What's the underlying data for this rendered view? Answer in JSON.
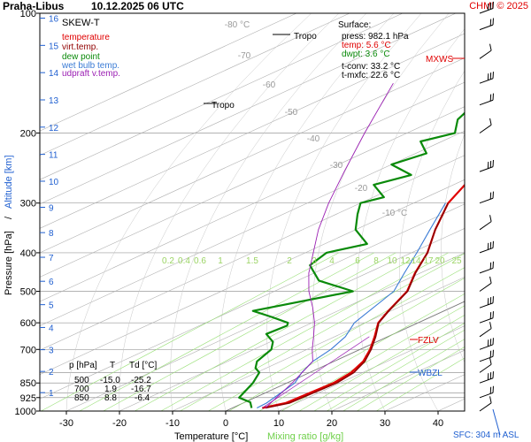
{
  "header": {
    "station": "Praha-Libus",
    "datetime": "10.12.2025 06 UTC",
    "credit": "CHMI © 2025"
  },
  "legend": {
    "title": "SKEW-T",
    "items": [
      {
        "label": "temperature",
        "color": "#e00000"
      },
      {
        "label": "virt.temp.",
        "color": "#900000"
      },
      {
        "label": "dew point",
        "color": "#0a8a0a"
      },
      {
        "label": "wet bulb temp.",
        "color": "#3a7bd5"
      },
      {
        "label": "udpraft v.temp.",
        "color": "#9b1fb3"
      }
    ]
  },
  "surface_box": {
    "title": "Surface:",
    "press": "press: 982.1 hPa",
    "temp": "temp: 5.6 °C",
    "dwpt": "dwpt: 3.6 °C",
    "tconv": "t-conv: 33.2 °C",
    "tmxfc": "t-mxfc: 22.6 °C"
  },
  "level_table": {
    "header": [
      "p [hPa]",
      "T",
      "Td [°C]"
    ],
    "rows": [
      [
        "500",
        "-15.0",
        "-25.2"
      ],
      [
        "700",
        "1.9",
        "-16.7"
      ],
      [
        "850",
        "8.8",
        "-6.4"
      ]
    ]
  },
  "annotations": {
    "tropo_upper": "Tropo",
    "tropo_lower": "Tropo",
    "mxws": "MXWS",
    "fzlv": "FZLV",
    "wbzl": "WBZL",
    "sfc": "SFC: 304 m ASL"
  },
  "axes": {
    "xlabel": "Temperature [°C]",
    "xlabel2": "Mixing ratio [g/kg]",
    "ylabel": "Pressure [hPa]",
    "ylabel_sep": "/",
    "ylabel2": "Altitude [km]",
    "x_ticks": [
      "-30",
      "-20",
      "-10",
      "0",
      "10",
      "20",
      "30",
      "40"
    ],
    "p_ticks": [
      "100",
      "200",
      "300",
      "400",
      "500",
      "600",
      "700",
      "850",
      "925",
      "1000"
    ],
    "alt_ticks": [
      "16",
      "15",
      "14",
      "13",
      "12",
      "11",
      "10",
      "9",
      "8",
      "7",
      "6",
      "5",
      "4",
      "3",
      "2",
      "1"
    ],
    "isotherm_labels": [
      "-80 °C",
      "-70",
      "-60",
      "-50",
      "-40",
      "-30",
      "-20",
      "-10 °C"
    ],
    "mixing_labels": [
      "0.2",
      "0.4",
      "0.6",
      "1",
      "1.5",
      "2",
      "3",
      "4",
      "6",
      "8",
      "10",
      "12",
      "14",
      "17",
      "20",
      "25"
    ]
  },
  "chart_data": {
    "type": "line",
    "title": "Praha-Libus 10.12.2025 06 UTC",
    "xlabel": "Temperature [°C]",
    "ylabel": "Pressure [hPa]",
    "xlim": [
      -35,
      45
    ],
    "ylim": [
      1000,
      100
    ],
    "y_scale": "log",
    "skew": "skew-T log-p",
    "grid": true,
    "series": [
      {
        "name": "temperature",
        "color": "#e00000",
        "points": [
          [
            5.6,
            982
          ],
          [
            8.0,
            955
          ],
          [
            8.8,
            850
          ],
          [
            7.8,
            800
          ],
          [
            5.5,
            750
          ],
          [
            1.9,
            700
          ],
          [
            -2.5,
            650
          ],
          [
            -7.5,
            600
          ],
          [
            -10.5,
            560
          ],
          [
            -15.0,
            500
          ],
          [
            -21.0,
            450
          ],
          [
            -27.0,
            400
          ],
          [
            -35.0,
            350
          ],
          [
            -43.5,
            300
          ],
          [
            -51.0,
            250
          ],
          [
            -56.0,
            220
          ],
          [
            -58.5,
            200
          ],
          [
            -59.5,
            185
          ],
          [
            -56.0,
            170
          ],
          [
            -57.0,
            160
          ],
          [
            -55.5,
            150
          ],
          [
            -54.5,
            140
          ],
          [
            -52.0,
            130
          ],
          [
            -51.0,
            120
          ],
          [
            -50.0,
            112
          ],
          [
            -52.0,
            106
          ],
          [
            -51.0,
            100
          ]
        ]
      },
      {
        "name": "virt.temp.",
        "color": "#900000",
        "points": [
          [
            6.2,
            982
          ],
          [
            8.7,
            955
          ],
          [
            9.4,
            850
          ],
          [
            8.3,
            800
          ],
          [
            5.8,
            750
          ],
          [
            2.1,
            700
          ],
          [
            -2.3,
            650
          ],
          [
            -7.4,
            600
          ],
          [
            -10.4,
            560
          ],
          [
            -14.9,
            500
          ],
          [
            -20.9,
            450
          ],
          [
            -27.0,
            400
          ],
          [
            -35.0,
            350
          ],
          [
            -43.5,
            300
          ]
        ]
      },
      {
        "name": "dew point",
        "color": "#0a8a0a",
        "points": [
          [
            3.6,
            982
          ],
          [
            1.0,
            950
          ],
          [
            -3.0,
            925
          ],
          [
            -6.4,
            850
          ],
          [
            -9.5,
            800
          ],
          [
            -12.0,
            780
          ],
          [
            -14.5,
            750
          ],
          [
            -16.7,
            700
          ],
          [
            -19.5,
            670
          ],
          [
            -24.0,
            640
          ],
          [
            -23.5,
            610
          ],
          [
            -24.5,
            600
          ],
          [
            -30.0,
            580
          ],
          [
            -36.0,
            560
          ],
          [
            -25.2,
            500
          ],
          [
            -36.0,
            470
          ],
          [
            -44.0,
            430
          ],
          [
            -46.0,
            400
          ],
          [
            -42.0,
            380
          ],
          [
            -50.0,
            350
          ],
          [
            -56.0,
            320
          ],
          [
            -60.0,
            300
          ],
          [
            -58.0,
            290
          ],
          [
            -65.0,
            270
          ],
          [
            -62.0,
            255
          ],
          [
            -70.0,
            240
          ],
          [
            -68.0,
            225
          ],
          [
            -74.0,
            210
          ],
          [
            -71.0,
            200
          ],
          [
            -76.0,
            185
          ],
          [
            -78.0,
            175
          ],
          [
            -74.0,
            165
          ],
          [
            -83.0,
            155
          ],
          [
            -83.0,
            145
          ],
          [
            -80.0,
            135
          ],
          [
            -83.0,
            125
          ],
          [
            -82.0,
            112
          ],
          [
            -84.0,
            100
          ]
        ]
      },
      {
        "name": "wet bulb temp.",
        "color": "#3a7bd5",
        "points": [
          [
            4.6,
            982
          ],
          [
            4.4,
            955
          ],
          [
            1.5,
            850
          ],
          [
            -1.5,
            800
          ],
          [
            -4.0,
            750
          ],
          [
            -5.5,
            700
          ],
          [
            -8.0,
            650
          ],
          [
            -12.0,
            600
          ],
          [
            -17.5,
            500
          ],
          [
            -23.0,
            450
          ],
          [
            -29.0,
            400
          ],
          [
            -36.0,
            350
          ],
          [
            -44.0,
            300
          ]
        ]
      },
      {
        "name": "udpraft v.temp.",
        "color": "#9b1fb3",
        "points": [
          [
            6.2,
            982
          ],
          [
            5.0,
            950
          ],
          [
            1.0,
            850
          ],
          [
            -4.0,
            750
          ],
          [
            -9.0,
            700
          ],
          [
            -14.0,
            650
          ],
          [
            -19.5,
            600
          ],
          [
            -26.0,
            550
          ],
          [
            -33.5,
            500
          ],
          [
            -41.0,
            450
          ],
          [
            -48.5,
            400
          ],
          [
            -57.0,
            350
          ],
          [
            -66.0,
            300
          ],
          [
            -76.0,
            250
          ],
          [
            -88.0,
            200
          ],
          [
            -103.0,
            150
          ]
        ]
      }
    ],
    "wind_barbs_hpa": [
      1000,
      925,
      850,
      800,
      750,
      700,
      650,
      600,
      550,
      500,
      450,
      400,
      350,
      300,
      250,
      200,
      170,
      150,
      130,
      110,
      100
    ]
  }
}
